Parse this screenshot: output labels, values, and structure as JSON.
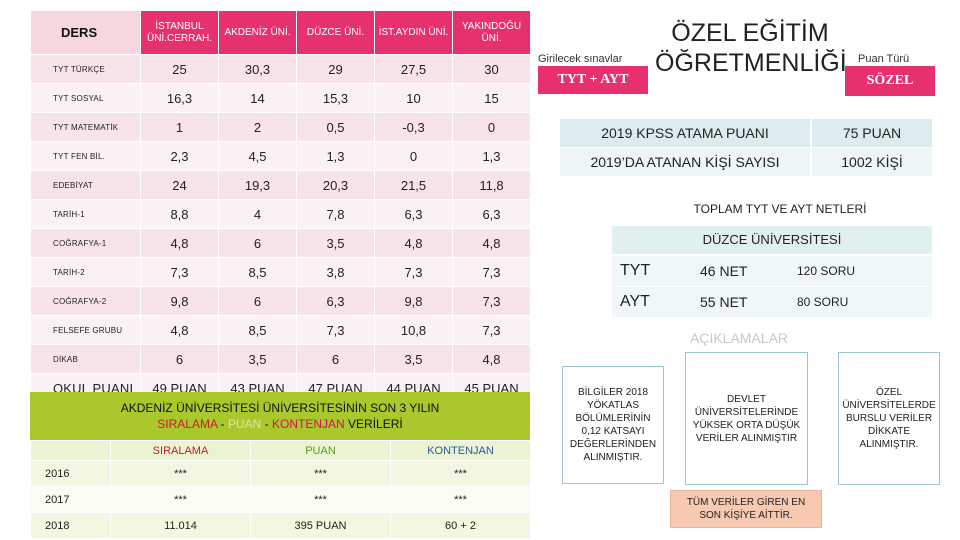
{
  "table": {
    "header_ders": "DERS",
    "columns": [
      "İSTANBUL ÜNİ.CERRAH.",
      "AKDENİZ ÜNİ.",
      "DÜZCE ÜNİ.",
      "İST.AYDIN ÜNİ.",
      "YAKINDOĞU ÜNİ."
    ],
    "rows": [
      {
        "label": "TYT  TÜRKÇE",
        "values": [
          "25",
          "30,3",
          "29",
          "27,5",
          "30"
        ]
      },
      {
        "label": "TYT SOSYAL",
        "values": [
          "16,3",
          "14",
          "15,3",
          "10",
          "15"
        ]
      },
      {
        "label": "TYT MATEMATİK",
        "values": [
          "1",
          "2",
          "0,5",
          "-0,3",
          "0"
        ]
      },
      {
        "label": "TYT FEN BİL.",
        "values": [
          "2,3",
          "4,5",
          "1,3",
          "0",
          "1,3"
        ]
      },
      {
        "label": "EDEBİYAT",
        "values": [
          "24",
          "19,3",
          "20,3",
          "21,5",
          "11,8"
        ]
      },
      {
        "label": "TARİH-1",
        "values": [
          "8,8",
          "4",
          "7,8",
          "6,3",
          "6,3"
        ]
      },
      {
        "label": "COĞRAFYA-1",
        "values": [
          "4,8",
          "6",
          "3,5",
          "4,8",
          "4,8"
        ]
      },
      {
        "label": "TARİH-2",
        "values": [
          "7,3",
          "8,5",
          "3,8",
          "7,3",
          "7,3"
        ]
      },
      {
        "label": "COĞRAFYA-2",
        "values": [
          "9,8",
          "6",
          "6,3",
          "9,8",
          "7,3"
        ]
      },
      {
        "label": "FELSEFE GRUBU",
        "values": [
          "4,8",
          "8,5",
          "7,3",
          "10,8",
          "7,3"
        ]
      },
      {
        "label": "DİKAB",
        "values": [
          "6",
          "3,5",
          "6",
          "3,5",
          "4,8"
        ]
      },
      {
        "label": "OKUL PUANI",
        "values": [
          "49 PUAN",
          "43 PUAN",
          "47 PUAN",
          "44 PUAN",
          "45 PUAN"
        ]
      }
    ]
  },
  "banner": {
    "line1": "AKDENİZ ÜNİVERSİTESİ ÜNİVERSİTESİNİN SON 3 YILIN",
    "sira": "SIRALAMA",
    "dash1": " - ",
    "puan": "PUAN",
    "dash2": "  - ",
    "kontenjan": "KONTENJAN",
    "tail": " VERİLERİ"
  },
  "bottom": {
    "headers": [
      "SIRALAMA",
      "PUAN",
      "KONTENJAN"
    ],
    "rows": [
      {
        "year": "2016",
        "values": [
          "***",
          "***",
          "***"
        ]
      },
      {
        "year": "2017",
        "values": [
          "***",
          "***",
          "***"
        ]
      },
      {
        "year": "2018",
        "values": [
          "11.014",
          "395 PUAN",
          "60 + 2"
        ]
      }
    ]
  },
  "right": {
    "girilecek_label": "Girilecek sınavlar",
    "girilecek_value": "TYT + AYT",
    "title": "ÖZEL EĞİTİM ÖĞRETMENLİĞİ",
    "puan_turu_label": "Puan Türü",
    "puan_turu_value": "SÖZEL",
    "kpss": [
      {
        "label": "2019 KPSS ATAMA PUANI",
        "value": "75 PUAN"
      },
      {
        "label": "2019’DA ATANAN KİŞİ SAYISI",
        "value": "1002 KİŞİ"
      }
    ],
    "toplam_title": "TOPLAM TYT VE AYT NETLERİ",
    "duzce": "DÜZCE ÜNİVERSİTESİ",
    "nets": [
      {
        "key": "TYT",
        "net": "46 NET",
        "soru": "120 SORU"
      },
      {
        "key": "AYT",
        "net": "55 NET",
        "soru": "80 SORU"
      }
    ],
    "aciklamalar": "AÇIKLAMALAR",
    "notes": [
      "BİLGİLER 2018 YÖKATLAS BÖLÜMLERİNİN 0,12 KATSAYI DEĞERLERİNDEN ALINMIŞTIR.",
      "DEVLET ÜNİVERSİTELERİNDE YÜKSEK ORTA DÜŞÜK VERİLER ALINMIŞTIR",
      "ÖZEL ÜNİVERSİTELERDE BURSLU VERİLER DİKKATE ALINMIŞTIR.",
      "TÜM VERİLER GİREN EN SON KİŞİYE AİTTİR."
    ]
  },
  "colors": {
    "accent_pink": "#e6306f",
    "banner_green": "#a8c82c",
    "teal_light": "#dcecee",
    "note_peach": "#f7c9b0"
  }
}
